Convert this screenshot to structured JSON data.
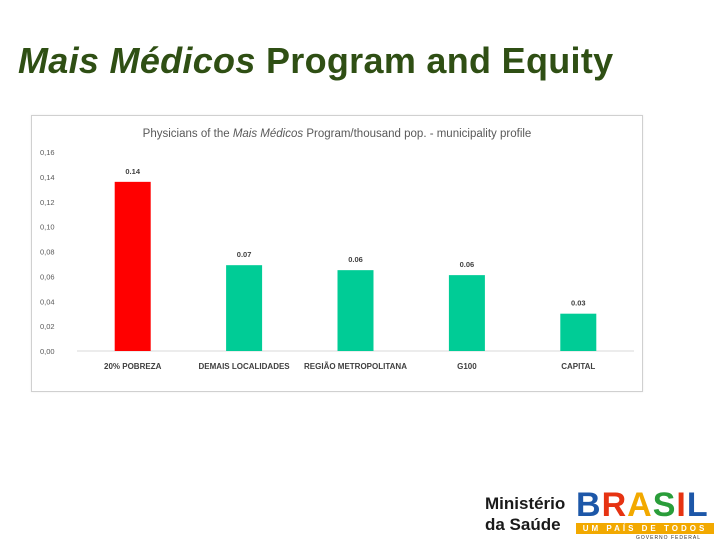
{
  "slide": {
    "title_italic": "Mais Médicos",
    "title_rest": "Program and Equity"
  },
  "chart_title": {
    "prefix": "Physicians of the ",
    "italic": "Mais Médicos",
    "suffix": " Program/thousand pop. - municipality profile"
  },
  "chart_data": {
    "type": "bar",
    "title": "Physicians of the Mais Médicos Program/thousand pop. - municipality profile",
    "categories": [
      "20% POBREZA",
      "DEMAIS LOCALIDADES",
      "REGIÃO METROPOLITANA",
      "G100",
      "CAPITAL"
    ],
    "values": [
      0.136,
      0.069,
      0.065,
      0.061,
      0.03
    ],
    "data_labels": [
      "0.14",
      "0.07",
      "0.06",
      "0.06",
      "0.03"
    ],
    "bar_colors": [
      "#ff0000",
      "#00cc96",
      "#00cc96",
      "#00cc96",
      "#00cc96"
    ],
    "ylim": [
      0,
      0.16
    ],
    "y_ticks": [
      "0,00",
      "0,02",
      "0,04",
      "0,06",
      "0,08",
      "0,10",
      "0,12",
      "0,14",
      "0,16"
    ],
    "xlabel": "",
    "ylabel": "",
    "grid": false,
    "legend": "none"
  },
  "footer": {
    "ministry_line1": "Ministério",
    "ministry_line2": "da Saúde",
    "brasil_word": "BRASIL",
    "brasil_tagline": "UM PAÍS DE TODOS",
    "brasil_gov": "GOVERNO FEDERAL"
  },
  "colors": {
    "title": "#2f4f14",
    "highlight_bar": "#ff0000",
    "default_bar": "#00cc96"
  }
}
